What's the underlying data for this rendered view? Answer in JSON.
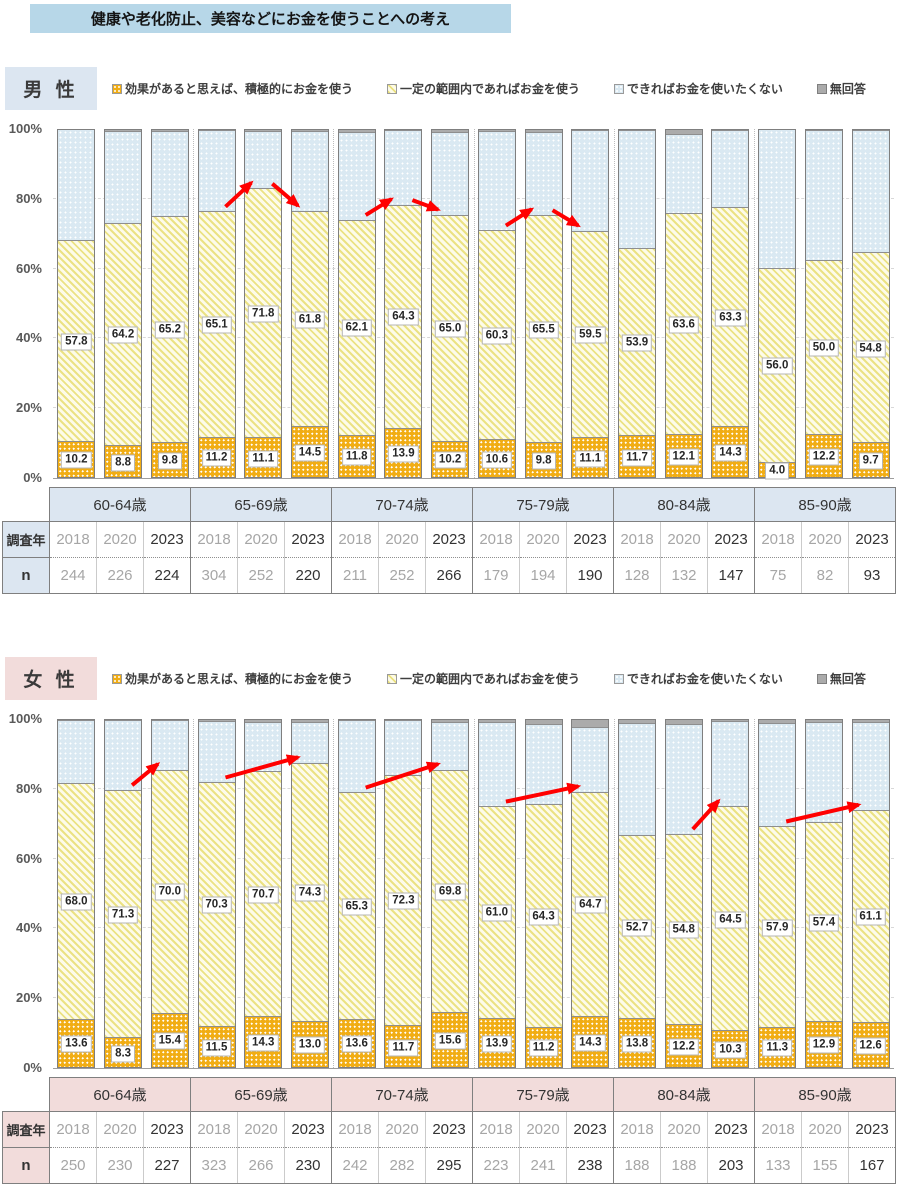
{
  "title": "健康や老化防止、美容などにお金を使うことへの考え",
  "legend": [
    "効果があると思えば、積極的にお金を使う",
    "一定の範囲内であればお金を使う",
    "できればお金を使いたくない",
    "無回答"
  ],
  "table": {
    "year_label": "調査年",
    "n_label": "n"
  },
  "yticks": [
    "0%",
    "20%",
    "40%",
    "60%",
    "80%",
    "100%"
  ],
  "colors": {
    "title_bg": "#B7D7E8",
    "male_accent": "#DCE6F1",
    "female_accent": "#F2DCDB",
    "active_gold": "#F1AD14",
    "range_yellow": "#EAE07E",
    "reluctant_blue": "#DAE9F2",
    "noanswer_gray": "#ABABAB",
    "arrow_red": "#FF0000"
  },
  "chart_data": [
    {
      "type": "bar",
      "stacked": true,
      "unit": "%",
      "ylim": [
        0,
        100
      ],
      "grid": "dashed horizontal at 20/40/60/80",
      "gender": "男 性",
      "categories": [
        "60-64歳",
        "65-69歳",
        "70-74歳",
        "75-79歳",
        "80-84歳",
        "85-90歳"
      ],
      "years": [
        "2018",
        "2020",
        "2023"
      ],
      "n": [
        [
          244,
          226,
          224
        ],
        [
          304,
          252,
          220
        ],
        [
          211,
          252,
          266
        ],
        [
          179,
          194,
          190
        ],
        [
          128,
          132,
          147
        ],
        [
          75,
          82,
          93
        ]
      ],
      "series": [
        {
          "name": "効果があると思えば、積極的にお金を使う",
          "labeled": true,
          "values": [
            [
              10.2,
              8.8,
              9.8
            ],
            [
              11.2,
              11.1,
              14.5
            ],
            [
              11.8,
              13.9,
              10.2
            ],
            [
              10.6,
              9.8,
              11.1
            ],
            [
              11.7,
              12.1,
              14.3
            ],
            [
              4.0,
              12.2,
              9.7
            ]
          ]
        },
        {
          "name": "一定の範囲内であればお金を使う",
          "labeled": true,
          "values": [
            [
              57.8,
              64.2,
              65.2
            ],
            [
              65.1,
              71.8,
              61.8
            ],
            [
              62.1,
              64.3,
              65.0
            ],
            [
              60.3,
              65.5,
              59.5
            ],
            [
              53.9,
              63.6,
              63.3
            ],
            [
              56.0,
              50.0,
              54.8
            ]
          ]
        },
        {
          "name": "できればお金を使いたくない",
          "labeled": false,
          "estimated": true,
          "values": [
            [
              32.0,
              26.5,
              24.5
            ],
            [
              23.4,
              16.6,
              23.1
            ],
            [
              25.2,
              21.4,
              24.0
            ],
            [
              28.5,
              23.7,
              29.0
            ],
            [
              34.0,
              22.8,
              22.0
            ],
            [
              40.0,
              37.4,
              35.1
            ]
          ]
        },
        {
          "name": "無回答",
          "labeled": false,
          "estimated": true,
          "values": [
            [
              0.0,
              0.5,
              0.5
            ],
            [
              0.3,
              0.5,
              0.6
            ],
            [
              0.9,
              0.4,
              0.8
            ],
            [
              0.6,
              1.0,
              0.4
            ],
            [
              0.4,
              1.5,
              0.4
            ],
            [
              0.0,
              0.4,
              0.4
            ]
          ]
        }
      ],
      "arrows": [
        [
          1,
          0,
          1
        ],
        [
          1,
          1,
          2
        ],
        [
          2,
          0,
          1
        ],
        [
          2,
          1,
          2
        ],
        [
          3,
          0,
          1
        ],
        [
          3,
          1,
          2
        ]
      ]
    },
    {
      "type": "bar",
      "stacked": true,
      "unit": "%",
      "ylim": [
        0,
        100
      ],
      "grid": "dashed horizontal at 20/40/60/80",
      "gender": "女 性",
      "categories": [
        "60-64歳",
        "65-69歳",
        "70-74歳",
        "75-79歳",
        "80-84歳",
        "85-90歳"
      ],
      "years": [
        "2018",
        "2020",
        "2023"
      ],
      "n": [
        [
          250,
          230,
          227
        ],
        [
          323,
          266,
          230
        ],
        [
          242,
          282,
          295
        ],
        [
          223,
          241,
          238
        ],
        [
          188,
          188,
          203
        ],
        [
          133,
          155,
          167
        ]
      ],
      "series": [
        {
          "name": "効果があると思えば、積極的にお金を使う",
          "labeled": true,
          "values": [
            [
              13.6,
              8.3,
              15.4
            ],
            [
              11.5,
              14.3,
              13.0
            ],
            [
              13.6,
              11.7,
              15.6
            ],
            [
              13.9,
              11.2,
              14.3
            ],
            [
              13.8,
              12.2,
              10.3
            ],
            [
              11.3,
              12.9,
              12.6
            ]
          ]
        },
        {
          "name": "一定の範囲内であればお金を使う",
          "labeled": true,
          "values": [
            [
              68.0,
              71.3,
              70.0
            ],
            [
              70.3,
              70.7,
              74.3
            ],
            [
              65.3,
              72.3,
              69.8
            ],
            [
              61.0,
              64.3,
              64.7
            ],
            [
              52.7,
              54.8,
              64.5
            ],
            [
              57.9,
              57.4,
              61.1
            ]
          ]
        },
        {
          "name": "できればお金を使いたくない",
          "labeled": false,
          "estimated": true,
          "values": [
            [
              18.0,
              20.0,
              14.3
            ],
            [
              17.6,
              14.2,
              11.7
            ],
            [
              20.7,
              15.6,
              13.6
            ],
            [
              24.2,
              23.0,
              18.6
            ],
            [
              32.4,
              31.7,
              24.7
            ],
            [
              29.7,
              28.7,
              25.4
            ]
          ]
        },
        {
          "name": "無回答",
          "labeled": false,
          "estimated": true,
          "values": [
            [
              0.4,
              0.4,
              0.3
            ],
            [
              0.6,
              0.8,
              1.0
            ],
            [
              0.4,
              0.4,
              1.0
            ],
            [
              0.9,
              1.5,
              2.4
            ],
            [
              1.1,
              1.3,
              0.5
            ],
            [
              1.1,
              1.0,
              0.9
            ]
          ]
        }
      ],
      "arrows": [
        [
          0,
          1,
          2
        ],
        [
          1,
          0,
          2
        ],
        [
          2,
          0,
          2
        ],
        [
          3,
          0,
          2
        ],
        [
          4,
          1,
          2
        ],
        [
          5,
          0,
          2
        ]
      ]
    }
  ]
}
